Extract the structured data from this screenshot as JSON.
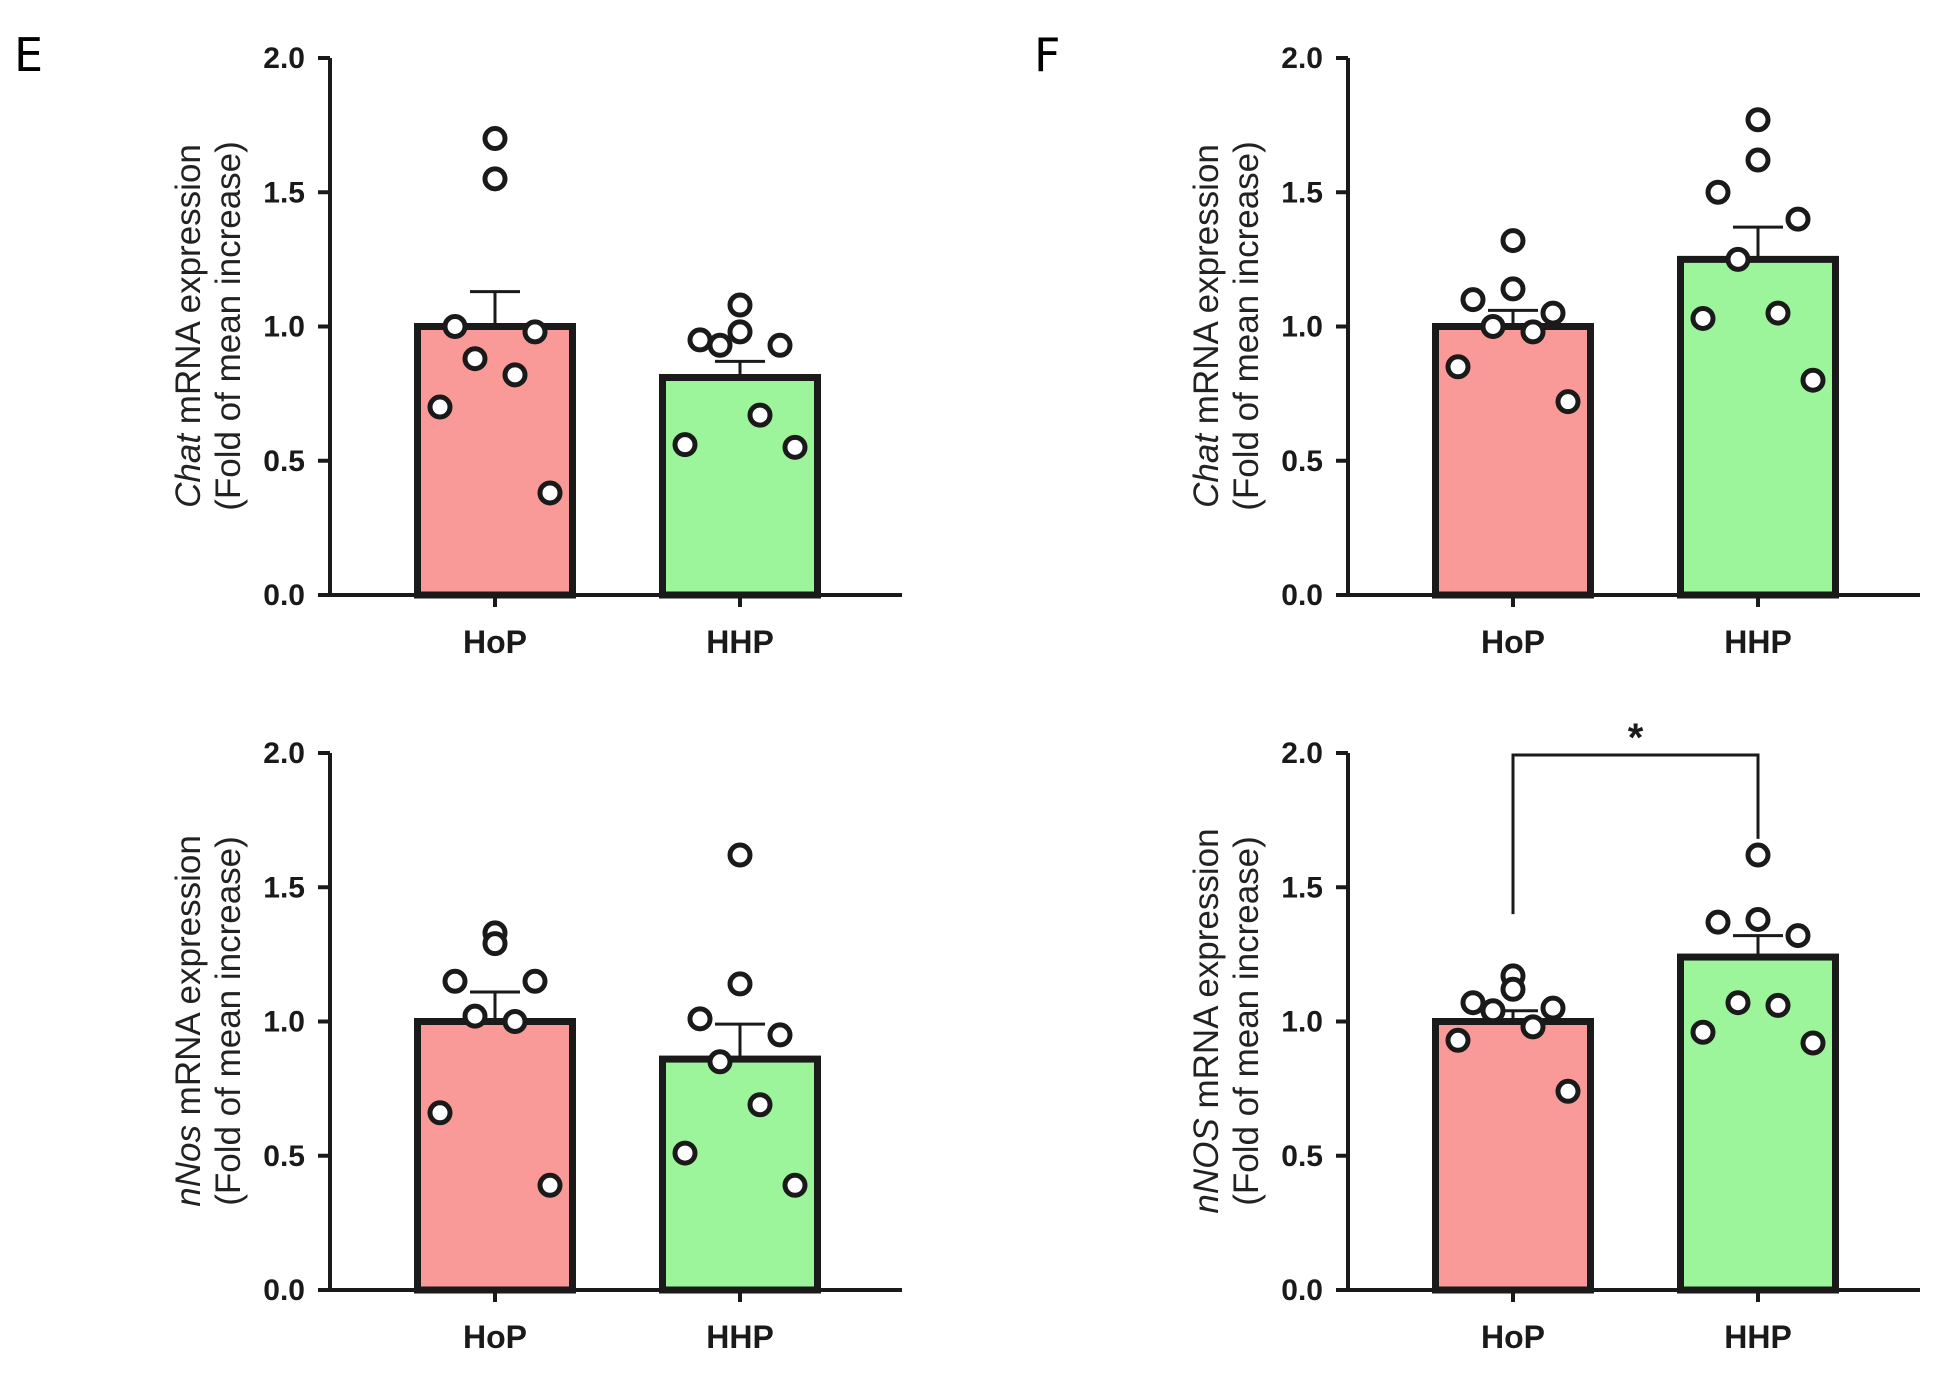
{
  "panels": [
    {
      "letter": "E"
    },
    {
      "letter": "F"
    }
  ],
  "colors": {
    "HoP": "#fa9a98",
    "HHP": "#9cf59a",
    "axis": "#1a1a1a"
  },
  "chart_data": [
    {
      "type": "bar",
      "panel": "E",
      "categories": [
        "HoP",
        "HHP"
      ],
      "values": [
        1.0,
        0.81
      ],
      "sem": [
        0.13,
        0.06
      ],
      "points": [
        [
          1.7,
          1.55,
          1.0,
          0.98,
          0.88,
          0.82,
          0.7,
          0.38
        ],
        [
          1.08,
          0.98,
          0.95,
          0.93,
          0.93,
          0.67,
          0.56,
          0.55
        ]
      ],
      "ylabel_italic": "Chat",
      "ylabel_rest": "mRNA expression",
      "ylabel_line2": "(Fold of mean increase)",
      "ylim": [
        0,
        2.0
      ],
      "yticks": [
        "0.0",
        "0.5",
        "1.0",
        "1.5",
        "2.0"
      ],
      "significance": null
    },
    {
      "type": "bar",
      "panel": "F",
      "categories": [
        "HoP",
        "HHP"
      ],
      "values": [
        1.0,
        1.25
      ],
      "sem": [
        0.06,
        0.12
      ],
      "points": [
        [
          1.32,
          1.14,
          1.1,
          1.05,
          1.0,
          0.98,
          0.85,
          0.72
        ],
        [
          1.77,
          1.62,
          1.5,
          1.4,
          1.25,
          1.05,
          1.03,
          0.8
        ]
      ],
      "ylabel_italic": "Chat",
      "ylabel_rest": "mRNA expression",
      "ylabel_line2": "(Fold of mean increase)",
      "ylim": [
        0,
        2.0
      ],
      "yticks": [
        "0.0",
        "0.5",
        "1.0",
        "1.5",
        "2.0"
      ],
      "significance": null
    },
    {
      "type": "bar",
      "panel": "E",
      "categories": [
        "HoP",
        "HHP"
      ],
      "values": [
        1.0,
        0.86
      ],
      "sem": [
        0.11,
        0.13
      ],
      "points": [
        [
          1.33,
          1.29,
          1.15,
          1.15,
          1.02,
          1.0,
          0.66,
          0.39
        ],
        [
          1.62,
          1.14,
          1.01,
          0.95,
          0.85,
          0.69,
          0.51,
          0.39
        ]
      ],
      "ylabel_italic": "nNos",
      "ylabel_rest": "mRNA expression",
      "ylabel_line2": "(Fold of mean increase)",
      "ylim": [
        0,
        2.0
      ],
      "yticks": [
        "0.0",
        "0.5",
        "1.0",
        "1.5",
        "2.0"
      ],
      "significance": null
    },
    {
      "type": "bar",
      "panel": "F",
      "categories": [
        "HoP",
        "HHP"
      ],
      "values": [
        1.0,
        1.24
      ],
      "sem": [
        0.04,
        0.08
      ],
      "points": [
        [
          1.17,
          1.12,
          1.07,
          1.05,
          1.04,
          0.98,
          0.93,
          0.74
        ],
        [
          1.62,
          1.38,
          1.37,
          1.32,
          1.07,
          1.06,
          0.96,
          0.92
        ]
      ],
      "ylabel_italic": "nNOS",
      "ylabel_rest": "mRNA expression",
      "ylabel_line2": "(Fold of mean increase)",
      "ylim": [
        0,
        2.0
      ],
      "yticks": [
        "0.0",
        "0.5",
        "1.0",
        "1.5",
        "2.0"
      ],
      "significance": {
        "between": [
          "HoP",
          "HHP"
        ],
        "label": "*"
      }
    }
  ]
}
